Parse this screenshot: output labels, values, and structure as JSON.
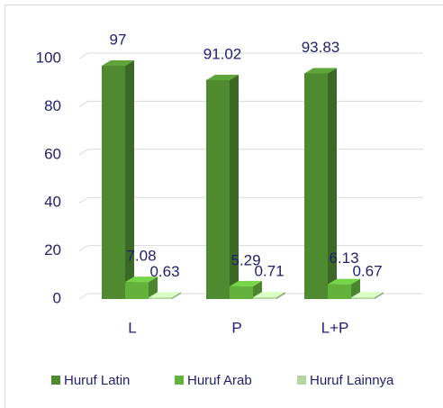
{
  "chart_data": {
    "type": "bar3d",
    "categories": [
      "L",
      "P",
      "L+P"
    ],
    "series": [
      {
        "name": "Huruf Latin",
        "color": "#4f8a30",
        "values": [
          97,
          91.02,
          93.83
        ]
      },
      {
        "name": "Huruf Arab",
        "color": "#62b23c",
        "values": [
          7.08,
          5.29,
          6.13
        ]
      },
      {
        "name": "Huruf Lainnya",
        "color": "#b5d6a3",
        "values": [
          0.63,
          0.71,
          0.67
        ]
      }
    ],
    "ylim": [
      0,
      100
    ],
    "yticks": [
      0,
      20,
      40,
      60,
      80,
      100
    ],
    "grid": true,
    "legend": "bottom"
  }
}
